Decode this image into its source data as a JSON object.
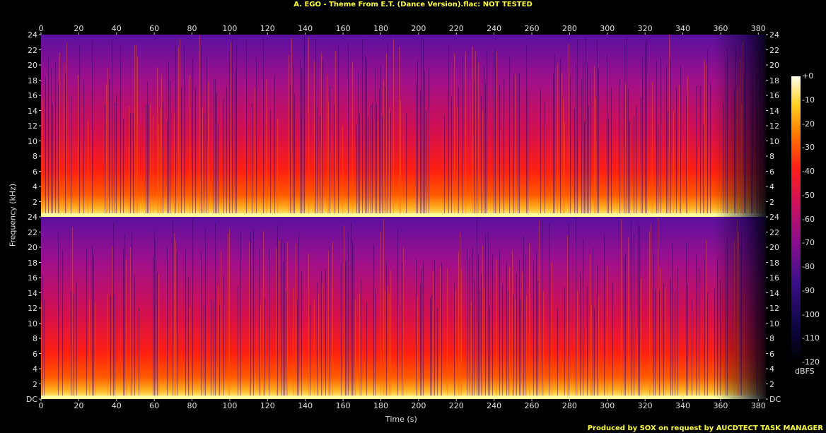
{
  "title": "A. EGO - Theme From E.T. (Dance Version).flac: NOT TESTED",
  "credit": "Produced by SOX on request by AUCDTECT TASK MANAGER",
  "chart_data": {
    "type": "heatmap",
    "title": "A. EGO - Theme From E.T. (Dance Version).flac: NOT TESTED",
    "xlabel": "Time (s)",
    "ylabel": "Frequency (kHz)",
    "xlim": [
      0,
      384
    ],
    "x_ticks": [
      "0",
      "20",
      "40",
      "60",
      "80",
      "100",
      "120",
      "140",
      "160",
      "180",
      "200",
      "220",
      "240",
      "260",
      "280",
      "300",
      "320",
      "340",
      "360",
      "380"
    ],
    "channels": [
      {
        "y_ticks": [
          "24",
          "22",
          "20",
          "18",
          "16",
          "14",
          "12",
          "10",
          "8",
          "6",
          "4",
          "2"
        ]
      },
      {
        "y_ticks": [
          "24",
          "22",
          "20",
          "18",
          "16",
          "14",
          "12",
          "10",
          "8",
          "6",
          "4",
          "2",
          "DC"
        ]
      }
    ],
    "colorbar": {
      "label": "dBFS",
      "ticks": [
        "+0",
        "-10",
        "-20",
        "-30",
        "-40",
        "-50",
        "-60",
        "-70",
        "-80",
        "-90",
        "-100",
        "-110",
        "-120"
      ],
      "range": [
        -120,
        0
      ]
    }
  }
}
